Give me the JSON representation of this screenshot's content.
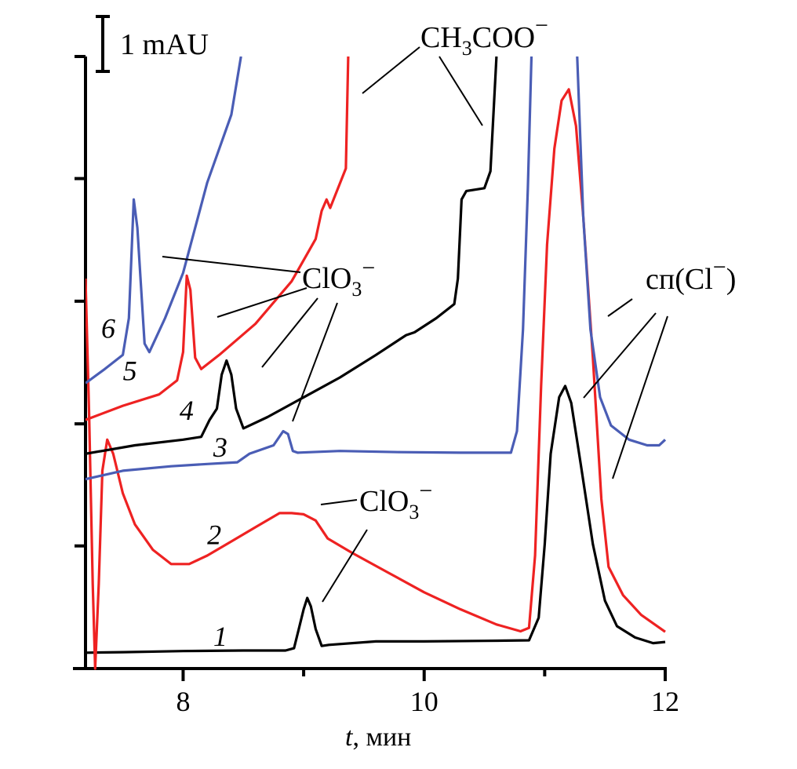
{
  "chart_data": {
    "type": "line",
    "title": "",
    "xlabel": "t, мин",
    "xlabel_var": "t",
    "xlabel_unit": ", мин",
    "ylabel": "",
    "xlim": [
      7.19,
      12.0
    ],
    "ylim": [
      0,
      10.83
    ],
    "x_ticks_major": [
      8,
      10,
      12
    ],
    "x_ticks_minor": [
      9,
      11
    ],
    "x_tick_labels": [
      "8",
      "10",
      "12"
    ],
    "y_ticks": [
      0,
      2.17,
      4.33,
      6.5,
      8.67,
      10.83
    ],
    "y_tick_labels_shown": false,
    "grid": false,
    "scale_bar": {
      "label": "1 mAU",
      "value": 1
    },
    "series": [
      {
        "name": "1",
        "color": "#000000",
        "points": [
          [
            7.19,
            0.28
          ],
          [
            7.5,
            0.29
          ],
          [
            8.0,
            0.31
          ],
          [
            8.5,
            0.32
          ],
          [
            8.85,
            0.32
          ],
          [
            8.92,
            0.36
          ],
          [
            8.96,
            0.7
          ],
          [
            9.0,
            1.05
          ],
          [
            9.03,
            1.25
          ],
          [
            9.06,
            1.1
          ],
          [
            9.1,
            0.7
          ],
          [
            9.15,
            0.4
          ],
          [
            9.21,
            0.42
          ],
          [
            9.6,
            0.48
          ],
          [
            10.0,
            0.48
          ],
          [
            10.5,
            0.49
          ],
          [
            10.87,
            0.5
          ],
          [
            10.95,
            0.9
          ],
          [
            11.0,
            2.2
          ],
          [
            11.05,
            3.8
          ],
          [
            11.12,
            4.8
          ],
          [
            11.17,
            5.0
          ],
          [
            11.22,
            4.7
          ],
          [
            11.3,
            3.6
          ],
          [
            11.4,
            2.2
          ],
          [
            11.5,
            1.2
          ],
          [
            11.6,
            0.75
          ],
          [
            11.75,
            0.55
          ],
          [
            11.9,
            0.45
          ],
          [
            12.0,
            0.47
          ]
        ]
      },
      {
        "name": "2",
        "color": "#ee2222",
        "points": [
          [
            7.19,
            6.9
          ],
          [
            7.22,
            4.5
          ],
          [
            7.25,
            1.5
          ],
          [
            7.27,
            0.0
          ],
          [
            7.3,
            1.5
          ],
          [
            7.33,
            3.5
          ],
          [
            7.37,
            4.05
          ],
          [
            7.42,
            3.8
          ],
          [
            7.5,
            3.1
          ],
          [
            7.6,
            2.55
          ],
          [
            7.75,
            2.1
          ],
          [
            7.9,
            1.85
          ],
          [
            8.05,
            1.85
          ],
          [
            8.2,
            2.0
          ],
          [
            8.4,
            2.25
          ],
          [
            8.6,
            2.5
          ],
          [
            8.8,
            2.75
          ],
          [
            8.9,
            2.75
          ],
          [
            9.0,
            2.73
          ],
          [
            9.1,
            2.62
          ],
          [
            9.2,
            2.3
          ],
          [
            9.4,
            2.05
          ],
          [
            9.7,
            1.7
          ],
          [
            10.0,
            1.35
          ],
          [
            10.3,
            1.05
          ],
          [
            10.6,
            0.78
          ],
          [
            10.8,
            0.66
          ],
          [
            10.87,
            0.72
          ],
          [
            10.92,
            2.0
          ],
          [
            10.97,
            5.0
          ],
          [
            11.02,
            7.5
          ],
          [
            11.08,
            9.2
          ],
          [
            11.14,
            10.05
          ],
          [
            11.2,
            10.25
          ],
          [
            11.26,
            9.6
          ],
          [
            11.32,
            8.0
          ],
          [
            11.4,
            5.5
          ],
          [
            11.47,
            3.0
          ],
          [
            11.53,
            1.8
          ],
          [
            11.65,
            1.3
          ],
          [
            11.8,
            0.95
          ],
          [
            12.0,
            0.65
          ]
        ]
      },
      {
        "name": "3",
        "color": "#4a5db5",
        "points": [
          [
            7.19,
            3.35
          ],
          [
            7.5,
            3.5
          ],
          [
            7.9,
            3.58
          ],
          [
            8.2,
            3.62
          ],
          [
            8.45,
            3.65
          ],
          [
            8.55,
            3.8
          ],
          [
            8.75,
            3.95
          ],
          [
            8.83,
            4.2
          ],
          [
            8.87,
            4.15
          ],
          [
            8.91,
            3.85
          ],
          [
            8.95,
            3.82
          ],
          [
            9.3,
            3.85
          ],
          [
            9.8,
            3.83
          ],
          [
            10.3,
            3.82
          ],
          [
            10.72,
            3.82
          ],
          [
            10.77,
            4.2
          ],
          [
            10.82,
            6.0
          ],
          [
            10.86,
            8.5
          ],
          [
            10.89,
            10.83
          ]
        ],
        "points_after": [
          [
            11.27,
            10.83
          ],
          [
            11.32,
            8.0
          ],
          [
            11.38,
            6.0
          ],
          [
            11.46,
            4.8
          ],
          [
            11.55,
            4.3
          ],
          [
            11.7,
            4.05
          ],
          [
            11.85,
            3.95
          ],
          [
            11.95,
            3.95
          ],
          [
            12.0,
            4.05
          ]
        ]
      },
      {
        "name": "4",
        "color": "#000000",
        "points": [
          [
            7.19,
            3.8
          ],
          [
            7.6,
            3.95
          ],
          [
            8.0,
            4.05
          ],
          [
            8.15,
            4.1
          ],
          [
            8.22,
            4.4
          ],
          [
            8.28,
            4.6
          ],
          [
            8.32,
            5.2
          ],
          [
            8.36,
            5.45
          ],
          [
            8.4,
            5.2
          ],
          [
            8.44,
            4.6
          ],
          [
            8.5,
            4.25
          ],
          [
            8.7,
            4.45
          ],
          [
            9.0,
            4.8
          ],
          [
            9.3,
            5.15
          ],
          [
            9.6,
            5.55
          ],
          [
            9.85,
            5.9
          ],
          [
            9.92,
            5.95
          ],
          [
            10.1,
            6.2
          ],
          [
            10.25,
            6.45
          ],
          [
            10.28,
            6.9
          ],
          [
            10.31,
            8.3
          ],
          [
            10.35,
            8.45
          ],
          [
            10.5,
            8.5
          ],
          [
            10.55,
            8.8
          ],
          [
            10.6,
            10.83
          ]
        ]
      },
      {
        "name": "5",
        "color": "#ee2222",
        "points": [
          [
            7.19,
            4.4
          ],
          [
            7.5,
            4.65
          ],
          [
            7.8,
            4.85
          ],
          [
            7.95,
            5.1
          ],
          [
            8.0,
            5.6
          ],
          [
            8.03,
            6.95
          ],
          [
            8.06,
            6.7
          ],
          [
            8.1,
            5.5
          ],
          [
            8.15,
            5.3
          ],
          [
            8.3,
            5.55
          ],
          [
            8.6,
            6.1
          ],
          [
            8.9,
            6.85
          ],
          [
            9.1,
            7.6
          ],
          [
            9.15,
            8.1
          ],
          [
            9.19,
            8.3
          ],
          [
            9.22,
            8.15
          ],
          [
            9.35,
            8.85
          ],
          [
            9.37,
            10.83
          ]
        ]
      },
      {
        "name": "6",
        "color": "#4a5db5",
        "points": [
          [
            7.19,
            5.05
          ],
          [
            7.35,
            5.3
          ],
          [
            7.5,
            5.55
          ],
          [
            7.55,
            6.2
          ],
          [
            7.59,
            8.3
          ],
          [
            7.62,
            7.8
          ],
          [
            7.68,
            5.75
          ],
          [
            7.72,
            5.6
          ],
          [
            7.85,
            6.2
          ],
          [
            8.0,
            7.0
          ],
          [
            8.2,
            8.6
          ],
          [
            8.4,
            9.8
          ],
          [
            8.48,
            10.83
          ]
        ]
      }
    ],
    "curve_labels": [
      {
        "text": "1",
        "t": 8.25,
        "mAU": 0.4
      },
      {
        "text": "2",
        "t": 8.2,
        "mAU": 2.2
      },
      {
        "text": "3",
        "t": 8.25,
        "mAU": 3.75
      },
      {
        "text": "4",
        "t": 7.97,
        "mAU": 4.4
      },
      {
        "text": "5",
        "t": 7.5,
        "mAU": 5.1
      },
      {
        "text": "6",
        "t": 7.32,
        "mAU": 5.85
      }
    ],
    "annotations": [
      {
        "id": "acetate",
        "base": "CH",
        "sub1": "3",
        "mid": "COO",
        "sup": "−"
      },
      {
        "id": "chlorate-upper",
        "base": "ClO",
        "sub": "3",
        "sup": "−"
      },
      {
        "id": "chlorate-lower",
        "base": "ClO",
        "sub": "3",
        "sup": "−"
      },
      {
        "id": "system-peak",
        "text": "сп(Cl",
        "sup": "−",
        "close": ")"
      }
    ]
  }
}
